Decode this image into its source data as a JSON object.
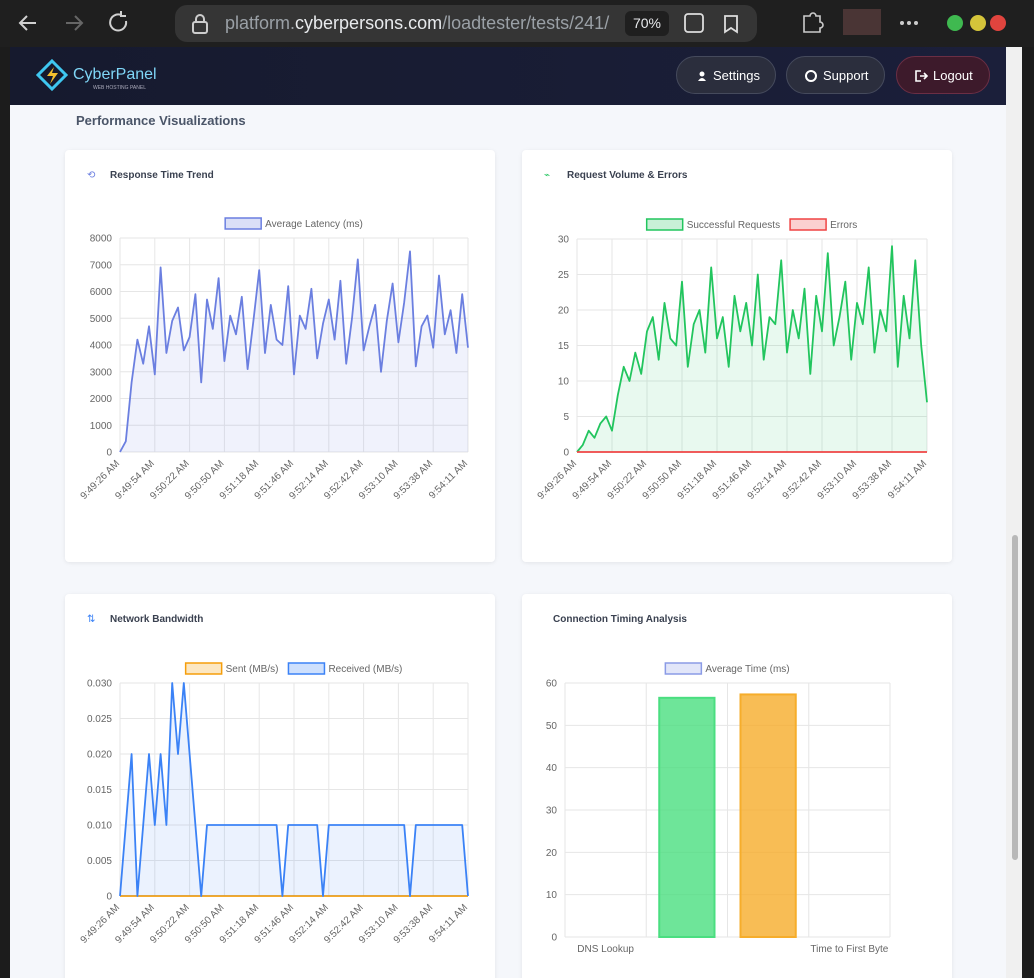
{
  "browser": {
    "url_host_prefix": "platform.",
    "url_host": "cyberpersons.com",
    "url_path": "/loadtester/tests/241/",
    "zoom": "70%"
  },
  "header": {
    "brand": "CyberPanel",
    "tagline": "WEB HOSTING PANEL",
    "buttons": [
      "Settings",
      "Support",
      "Logout"
    ]
  },
  "section_title": "Performance Visualizations",
  "chart_data": [
    {
      "type": "line",
      "title": "Response Time Trend",
      "categories": [
        "9:49:26 AM",
        null,
        null,
        null,
        null,
        null,
        "9:49:54 AM",
        null,
        null,
        null,
        null,
        null,
        "9:50:22 AM",
        null,
        null,
        null,
        null,
        null,
        "9:50:50 AM",
        null,
        null,
        null,
        null,
        null,
        "9:51:18 AM",
        null,
        null,
        null,
        null,
        null,
        "9:51:46 AM",
        null,
        null,
        null,
        null,
        null,
        "9:52:14 AM",
        null,
        null,
        null,
        null,
        null,
        "9:52:42 AM",
        null,
        null,
        null,
        null,
        null,
        "9:53:10 AM",
        null,
        null,
        null,
        null,
        null,
        "9:53:38 AM",
        null,
        null,
        null,
        null,
        null,
        "9:54:11 AM"
      ],
      "series": [
        {
          "name": "Average Latency (ms)",
          "color": "#6b7fe0",
          "values": [
            0,
            400,
            2600,
            4200,
            3300,
            4700,
            2900,
            6900,
            3700,
            4900,
            5400,
            3800,
            4300,
            5900,
            2600,
            5700,
            4600,
            6500,
            3400,
            5100,
            4400,
            5800,
            3100,
            4900,
            6800,
            3700,
            5500,
            4200,
            4000,
            6200,
            2900,
            5100,
            4600,
            6100,
            3500,
            4800,
            5700,
            4200,
            6400,
            3300,
            5000,
            7200,
            3800,
            4700,
            5500,
            3000,
            4900,
            6300,
            4100,
            5600,
            7500,
            3200,
            4700,
            5100,
            3900,
            6600,
            4400,
            5300,
            3700,
            5900,
            3900
          ]
        }
      ],
      "ylim": [
        0,
        8000
      ],
      "yticks": [
        0,
        1000,
        2000,
        3000,
        4000,
        5000,
        6000,
        7000,
        8000
      ],
      "grid": true
    },
    {
      "type": "line",
      "title": "Request Volume & Errors",
      "categories": [
        "9:49:26 AM",
        null,
        null,
        null,
        null,
        null,
        "9:49:54 AM",
        null,
        null,
        null,
        null,
        null,
        "9:50:22 AM",
        null,
        null,
        null,
        null,
        null,
        "9:50:50 AM",
        null,
        null,
        null,
        null,
        null,
        "9:51:18 AM",
        null,
        null,
        null,
        null,
        null,
        "9:51:46 AM",
        null,
        null,
        null,
        null,
        null,
        "9:52:14 AM",
        null,
        null,
        null,
        null,
        null,
        "9:52:42 AM",
        null,
        null,
        null,
        null,
        null,
        "9:53:10 AM",
        null,
        null,
        null,
        null,
        null,
        "9:53:38 AM",
        null,
        null,
        null,
        null,
        null,
        "9:54:11 AM"
      ],
      "series": [
        {
          "name": "Successful Requests",
          "color": "#22c55e",
          "values": [
            0,
            1,
            3,
            2,
            4,
            5,
            3,
            8,
            12,
            10,
            14,
            11,
            17,
            19,
            13,
            21,
            16,
            15,
            24,
            12,
            18,
            20,
            14,
            26,
            16,
            19,
            12,
            22,
            17,
            21,
            15,
            25,
            13,
            19,
            18,
            27,
            14,
            20,
            16,
            23,
            11,
            22,
            17,
            28,
            15,
            19,
            24,
            13,
            21,
            18,
            26,
            14,
            20,
            17,
            29,
            12,
            22,
            16,
            27,
            15,
            7
          ]
        },
        {
          "name": "Errors",
          "color": "#ef4444",
          "values": [
            0,
            0,
            0,
            0,
            0,
            0,
            0,
            0,
            0,
            0,
            0,
            0,
            0,
            0,
            0,
            0,
            0,
            0,
            0,
            0,
            0,
            0,
            0,
            0,
            0,
            0,
            0,
            0,
            0,
            0,
            0,
            0,
            0,
            0,
            0,
            0,
            0,
            0,
            0,
            0,
            0,
            0,
            0,
            0,
            0,
            0,
            0,
            0,
            0,
            0,
            0,
            0,
            0,
            0,
            0,
            0,
            0,
            0,
            0,
            0,
            0
          ]
        }
      ],
      "ylim": [
        0,
        30
      ],
      "yticks": [
        0,
        5,
        10,
        15,
        20,
        25,
        30
      ],
      "grid": true
    },
    {
      "type": "line",
      "title": "Network Bandwidth",
      "categories": [
        "9:49:26 AM",
        null,
        null,
        null,
        null,
        null,
        "9:49:54 AM",
        null,
        null,
        null,
        null,
        null,
        "9:50:22 AM",
        null,
        null,
        null,
        null,
        null,
        "9:50:50 AM",
        null,
        null,
        null,
        null,
        null,
        "9:51:18 AM",
        null,
        null,
        null,
        null,
        null,
        "9:51:46 AM",
        null,
        null,
        null,
        null,
        null,
        "9:52:14 AM",
        null,
        null,
        null,
        null,
        null,
        "9:52:42 AM",
        null,
        null,
        null,
        null,
        null,
        "9:53:10 AM",
        null,
        null,
        null,
        null,
        null,
        "9:53:38 AM",
        null,
        null,
        null,
        null,
        null,
        "9:54:11 AM"
      ],
      "series": [
        {
          "name": "Sent (MB/s)",
          "color": "#f59e0b",
          "values": [
            0,
            0,
            0,
            0,
            0,
            0,
            0,
            0,
            0,
            0,
            0,
            0,
            0,
            0,
            0,
            0,
            0,
            0,
            0,
            0,
            0,
            0,
            0,
            0,
            0,
            0,
            0,
            0,
            0,
            0,
            0,
            0,
            0,
            0,
            0,
            0,
            0,
            0,
            0,
            0,
            0,
            0,
            0,
            0,
            0,
            0,
            0,
            0,
            0,
            0,
            0,
            0,
            0,
            0,
            0,
            0,
            0,
            0,
            0,
            0,
            0
          ]
        },
        {
          "name": "Received (MB/s)",
          "color": "#3b82f6",
          "values": [
            0,
            0.01,
            0.02,
            0,
            0.01,
            0.02,
            0.01,
            0.02,
            0.01,
            0.03,
            0.02,
            0.03,
            0.02,
            0.01,
            0,
            0.01,
            0.01,
            0.01,
            0.01,
            0.01,
            0.01,
            0.01,
            0.01,
            0.01,
            0.01,
            0.01,
            0.01,
            0.01,
            0,
            0.01,
            0.01,
            0.01,
            0.01,
            0.01,
            0.01,
            0,
            0.01,
            0.01,
            0.01,
            0.01,
            0.01,
            0.01,
            0.01,
            0.01,
            0.01,
            0.01,
            0.01,
            0.01,
            0.01,
            0.01,
            0,
            0.01,
            0.01,
            0.01,
            0.01,
            0.01,
            0.01,
            0.01,
            0.01,
            0.01,
            0
          ]
        }
      ],
      "ylim": [
        0,
        0.03
      ],
      "yticks": [
        0,
        0.005,
        {
          "value": 0.01,
          "label": "0.010"
        },
        0.015,
        {
          "value": 0.02,
          "label": "0.020"
        },
        0.025,
        {
          "value": 0.03,
          "label": "0.030"
        }
      ],
      "grid": true
    },
    {
      "type": "bar",
      "title": "Connection Timing Analysis",
      "categories": [
        "DNS Lookup",
        null,
        null,
        "Time to First Byte"
      ],
      "series": [
        {
          "name": "Average Time (ms)",
          "color": "#8b9be6",
          "values": [
            0,
            56.5,
            57.3,
            0
          ]
        }
      ],
      "bar_colors": [
        "#8b9be6",
        "#4ade80",
        "#f6ad2b",
        "#8b9be6"
      ],
      "ylim": [
        0,
        60
      ],
      "yticks": [
        0,
        10,
        20,
        30,
        40,
        50,
        60
      ],
      "grid": true
    }
  ]
}
